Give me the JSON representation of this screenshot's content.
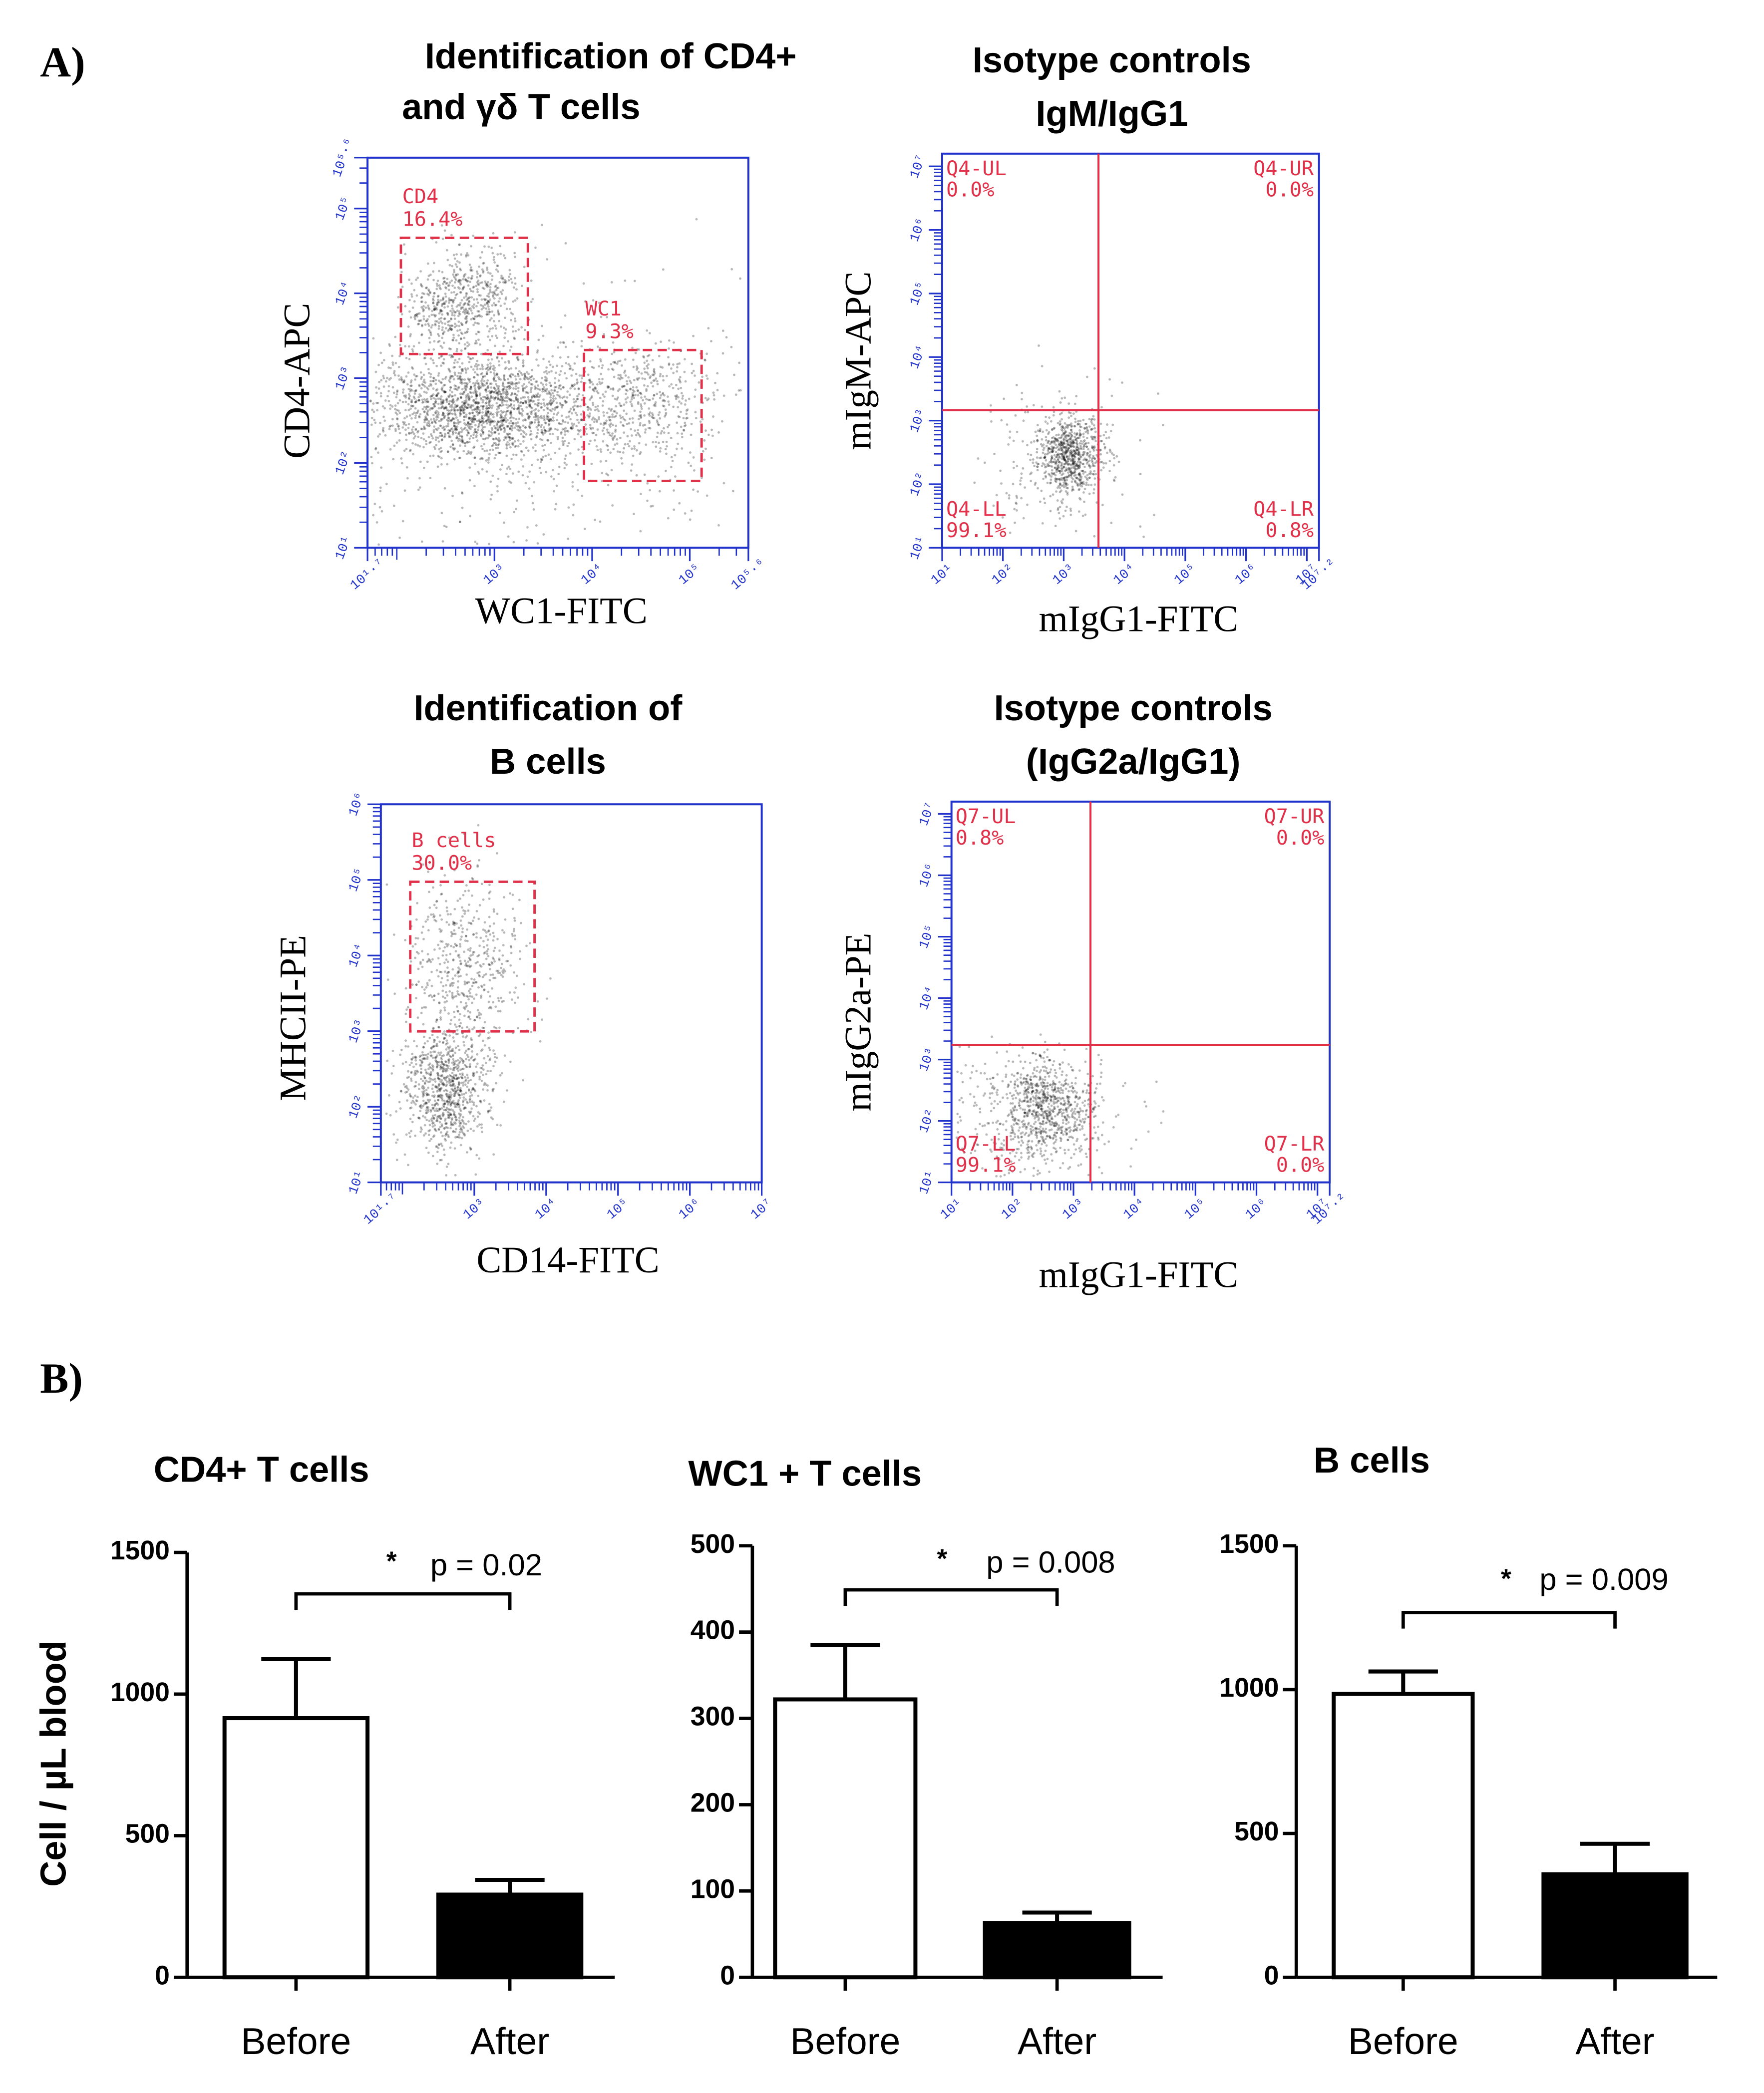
{
  "figure": {
    "panel_a": "A)",
    "panel_b": "B)"
  },
  "chart_data": [
    {
      "type": "flow",
      "title": [
        "Identification of CD4+",
        "and γδ T cells"
      ],
      "xlabel": "WC1-FITC",
      "ylabel": "CD4-APC",
      "xlim": [
        1.7,
        5.6
      ],
      "xticks": [
        {
          "value": 1.7,
          "label": "10¹·⁷"
        },
        {
          "value": 3,
          "label": "10³"
        },
        {
          "value": 4,
          "label": "10⁴"
        },
        {
          "value": 5,
          "label": "10⁵"
        },
        {
          "value": 5.6,
          "label": "10⁵·⁶"
        }
      ],
      "ylim": [
        1,
        5.6
      ],
      "yticks": [
        {
          "value": 1,
          "label": "10¹"
        },
        {
          "value": 2,
          "label": "10²"
        },
        {
          "value": 3,
          "label": "10³"
        },
        {
          "value": 4,
          "label": "10⁴"
        },
        {
          "value": 5,
          "label": "10⁵"
        },
        {
          "value": 5.6,
          "label": "10⁵·⁶"
        }
      ],
      "gates": {
        "names": [
          "CD4",
          "WC1"
        ],
        "values": [
          16.4,
          9.3
        ],
        "value_labels": [
          "16.4%",
          "9.3%"
        ]
      }
    },
    {
      "type": "flow",
      "title": [
        "Isotype controls",
        "IgM/IgG1"
      ],
      "xlabel": "mIgG1-FITC",
      "ylabel": "mIgM-APC",
      "xlim": [
        1,
        7.2
      ],
      "xticks": [
        {
          "value": 1,
          "label": "10¹"
        },
        {
          "value": 2,
          "label": "10²"
        },
        {
          "value": 3,
          "label": "10³"
        },
        {
          "value": 4,
          "label": "10⁴"
        },
        {
          "value": 5,
          "label": "10⁵"
        },
        {
          "value": 6,
          "label": "10⁶"
        },
        {
          "value": 7,
          "label": "10⁷"
        },
        {
          "value": 7.2,
          "label": "10⁷·²"
        }
      ],
      "ylim": [
        1,
        7.2
      ],
      "yticks": [
        {
          "value": 1,
          "label": "10¹"
        },
        {
          "value": 2,
          "label": "10²"
        },
        {
          "value": 3,
          "label": "10³"
        },
        {
          "value": 4,
          "label": "10⁴"
        },
        {
          "value": 5,
          "label": "10⁵"
        },
        {
          "value": 6,
          "label": "10⁶"
        },
        {
          "value": 7,
          "label": "10⁷"
        }
      ],
      "quadrants": {
        "names": [
          "Q4-UL",
          "Q4-UR",
          "Q4-LL",
          "Q4-LR"
        ],
        "values": [
          0.0,
          0.0,
          99.1,
          0.8
        ],
        "value_labels": [
          "0.0%",
          "0.0%",
          "99.1%",
          "0.8%"
        ]
      }
    },
    {
      "type": "flow",
      "title": [
        "Identification of",
        "B cells"
      ],
      "xlabel": "CD14-FITC",
      "ylabel": "MHCII-PE",
      "xlim": [
        1.7,
        7
      ],
      "xticks": [
        {
          "value": 1.7,
          "label": "10¹·⁷"
        },
        {
          "value": 3,
          "label": "10³"
        },
        {
          "value": 4,
          "label": "10⁴"
        },
        {
          "value": 5,
          "label": "10⁵"
        },
        {
          "value": 6,
          "label": "10⁶"
        },
        {
          "value": 7,
          "label": "10⁷"
        }
      ],
      "ylim": [
        1,
        6
      ],
      "yticks": [
        {
          "value": 1,
          "label": "10¹"
        },
        {
          "value": 2,
          "label": "10²"
        },
        {
          "value": 3,
          "label": "10³"
        },
        {
          "value": 4,
          "label": "10⁴"
        },
        {
          "value": 5,
          "label": "10⁵"
        },
        {
          "value": 6,
          "label": "10⁶"
        }
      ],
      "gates": {
        "names": [
          "B cells"
        ],
        "values": [
          30.0
        ],
        "value_labels": [
          "30.0%"
        ]
      }
    },
    {
      "type": "flow",
      "title": [
        "Isotype controls",
        "(IgG2a/IgG1)"
      ],
      "xlabel": "mIgG1-FITC",
      "ylabel": "mIgG2a-PE",
      "xlim": [
        1,
        7.2
      ],
      "xticks": [
        {
          "value": 1,
          "label": "10¹"
        },
        {
          "value": 2,
          "label": "10²"
        },
        {
          "value": 3,
          "label": "10³"
        },
        {
          "value": 4,
          "label": "10⁴"
        },
        {
          "value": 5,
          "label": "10⁵"
        },
        {
          "value": 6,
          "label": "10⁶"
        },
        {
          "value": 7,
          "label": "10⁷"
        },
        {
          "value": 7.2,
          "label": "10⁷·²"
        }
      ],
      "ylim": [
        1,
        7.2
      ],
      "yticks": [
        {
          "value": 1,
          "label": "10¹"
        },
        {
          "value": 2,
          "label": "10²"
        },
        {
          "value": 3,
          "label": "10³"
        },
        {
          "value": 4,
          "label": "10⁴"
        },
        {
          "value": 5,
          "label": "10⁵"
        },
        {
          "value": 6,
          "label": "10⁶"
        },
        {
          "value": 7,
          "label": "10⁷"
        }
      ],
      "quadrants": {
        "names": [
          "Q7-UL",
          "Q7-UR",
          "Q7-LL",
          "Q7-LR"
        ],
        "values": [
          0.8,
          0.0,
          99.1,
          0.0
        ],
        "value_labels": [
          "0.8%",
          "0.0%",
          "99.1%",
          "0.0%"
        ]
      }
    },
    {
      "type": "bar",
      "title": "CD4+ T cells",
      "ylabel": "Cell / µL blood",
      "categories": [
        "Before",
        "After"
      ],
      "values": [
        915,
        292
      ],
      "errors": [
        208,
        52
      ],
      "colors": [
        "#ffffff",
        "#000000"
      ],
      "ylim": [
        0,
        1500
      ],
      "yticks": [
        0,
        500,
        1000,
        1500
      ],
      "annotations": [
        "*",
        "p = 0.02"
      ]
    },
    {
      "type": "bar",
      "title": "WC1 + T cells",
      "categories": [
        "Before",
        "After"
      ],
      "values": [
        322,
        63
      ],
      "errors": [
        63,
        12
      ],
      "colors": [
        "#ffffff",
        "#000000"
      ],
      "ylim": [
        0,
        500
      ],
      "yticks": [
        0,
        100,
        200,
        300,
        400,
        500
      ],
      "annotations": [
        "*",
        "p = 0.008"
      ]
    },
    {
      "type": "bar",
      "title": "B cells",
      "categories": [
        "Before",
        "After"
      ],
      "values": [
        985,
        358
      ],
      "errors": [
        78,
        106
      ],
      "colors": [
        "#ffffff",
        "#000000"
      ],
      "ylim": [
        0,
        1500
      ],
      "yticks": [
        0,
        500,
        1000,
        1500
      ],
      "annotations": [
        "*",
        "p = 0.009"
      ]
    }
  ]
}
